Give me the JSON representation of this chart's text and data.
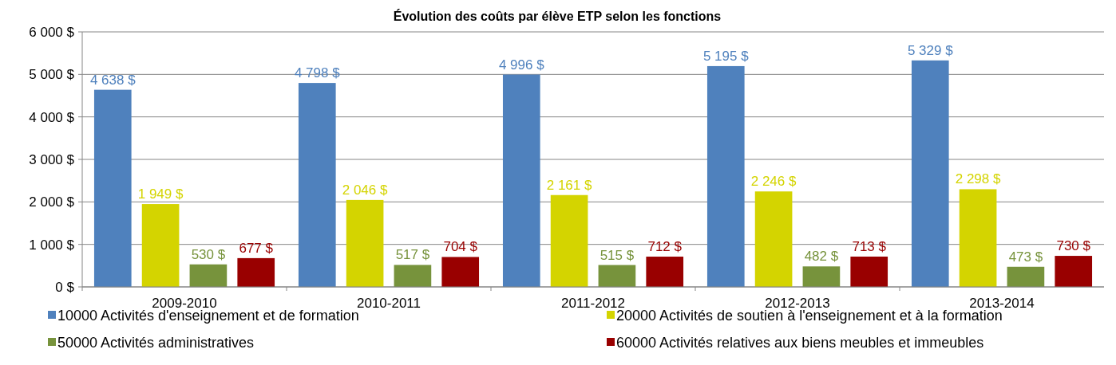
{
  "chart_data": {
    "type": "bar",
    "title": "Évolution des coûts par élève ETP selon les fonctions",
    "categories": [
      "2009-2010",
      "2010-2011",
      "2011-2012",
      "2012-2013",
      "2013-2014"
    ],
    "series": [
      {
        "name": "10000 Activités d'enseignement et de formation",
        "color": "#4f81bd",
        "values": [
          4638,
          4798,
          4996,
          5195,
          5329
        ],
        "value_labels": [
          "4 638 $",
          "4 798 $",
          "4 996 $",
          "5 195 $",
          "5 329 $"
        ]
      },
      {
        "name": "20000 Activités de soutien à l'enseignement et à la formation",
        "color": "#d4d400",
        "values": [
          1949,
          2046,
          2161,
          2246,
          2298
        ],
        "value_labels": [
          "1 949 $",
          "2 046 $",
          "2 161 $",
          "2 246 $",
          "2 298 $"
        ]
      },
      {
        "name": "50000 Activités administratives",
        "color": "#77933c",
        "values": [
          530,
          517,
          515,
          482,
          473
        ],
        "value_labels": [
          "530 $",
          "517 $",
          "515 $",
          "482 $",
          "473 $"
        ]
      },
      {
        "name": "60000 Activités relatives aux biens meubles et immeubles",
        "color": "#990000",
        "values": [
          677,
          704,
          712,
          713,
          730
        ],
        "value_labels": [
          "677 $",
          "704 $",
          "712 $",
          "713 $",
          "730 $"
        ]
      }
    ],
    "ylim": [
      0,
      6000
    ],
    "yticks": [
      {
        "value": 0,
        "label": "0 $"
      },
      {
        "value": 1000,
        "label": "1 000 $"
      },
      {
        "value": 2000,
        "label": "2 000 $"
      },
      {
        "value": 3000,
        "label": "3 000 $"
      },
      {
        "value": 4000,
        "label": "4 000 $"
      },
      {
        "value": 5000,
        "label": "5 000 $"
      },
      {
        "value": 6000,
        "label": "6 000 $"
      }
    ],
    "grid": "y",
    "legend": "bottom"
  }
}
